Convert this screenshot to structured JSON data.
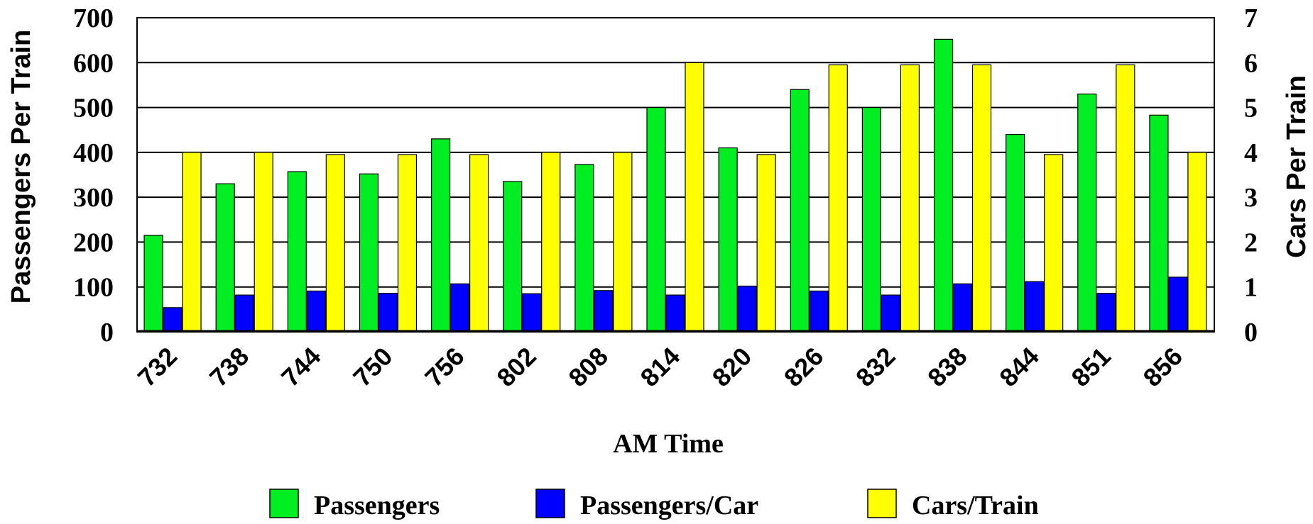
{
  "chart_data": {
    "type": "bar",
    "categories": [
      "732",
      "738",
      "744",
      "750",
      "756",
      "802",
      "808",
      "814",
      "820",
      "826",
      "832",
      "838",
      "844",
      "851",
      "856"
    ],
    "series": [
      {
        "name": "Passengers",
        "axis": "left",
        "color": "#00ee22",
        "values": [
          215,
          330,
          357,
          352,
          430,
          335,
          373,
          500,
          410,
          540,
          500,
          652,
          440,
          530,
          483
        ]
      },
      {
        "name": "Passengers/Car",
        "axis": "right",
        "color": "#0000ff",
        "values": [
          0.54,
          0.82,
          0.91,
          0.86,
          1.07,
          0.85,
          0.92,
          0.82,
          1.02,
          0.91,
          0.82,
          1.07,
          1.12,
          0.86,
          1.22
        ]
      },
      {
        "name": "Cars/Train",
        "axis": "right",
        "color": "#ffff00",
        "values": [
          4,
          4,
          3.95,
          3.95,
          3.95,
          4,
          4,
          6,
          3.95,
          5.95,
          5.95,
          5.95,
          3.95,
          5.95,
          4
        ]
      }
    ],
    "xlabel": "AM Time",
    "ylabel": "Passengers Per Train",
    "y2label": "Cars Per Train",
    "ylim": [
      0,
      700
    ],
    "y2lim": [
      0,
      7
    ],
    "yticks": [
      0,
      100,
      200,
      300,
      400,
      500,
      600,
      700
    ],
    "y2ticks": [
      0,
      1,
      2,
      3,
      4,
      5,
      6,
      7
    ],
    "grid": true,
    "legend_position": "bottom"
  }
}
